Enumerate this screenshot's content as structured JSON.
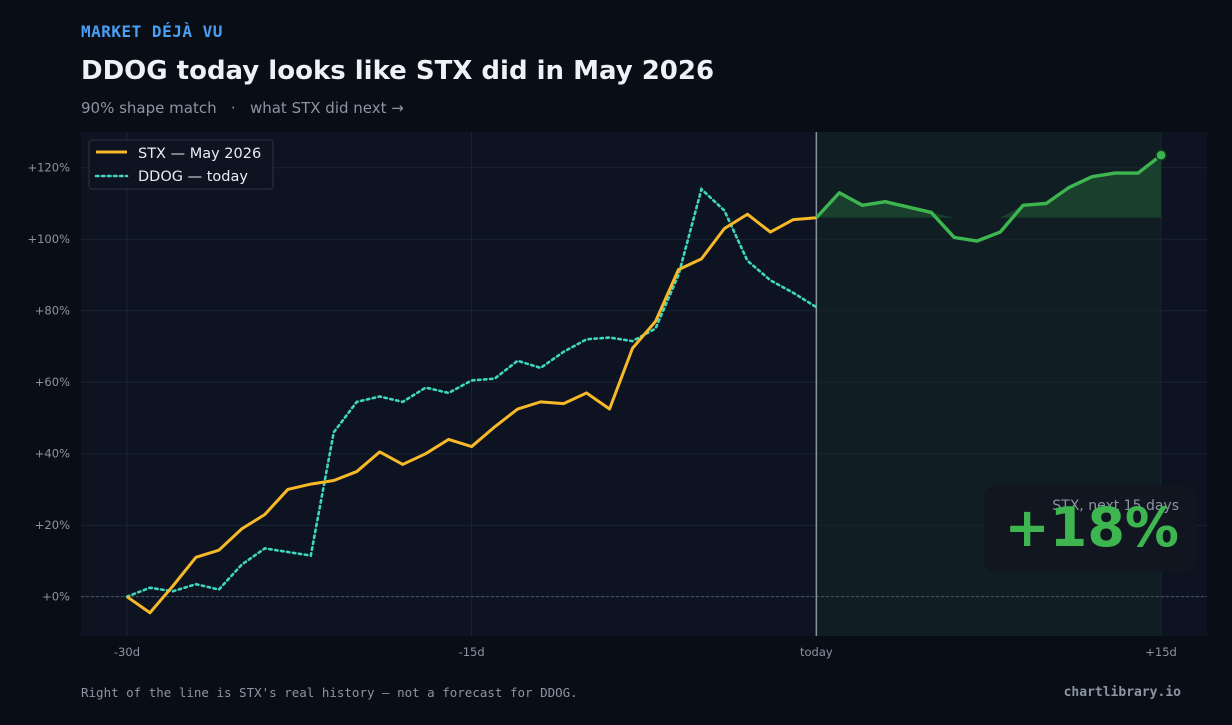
{
  "header": {
    "eyebrow": "MARKET DÉJÀ VU",
    "title": "DDOG today looks like STX did in May 2026",
    "subtitle": "90% shape match   ·   what STX did next →"
  },
  "footer": {
    "note": "Right of the line is STX's real history — not a forecast for DDOG.",
    "brand": "chartlibrary.io"
  },
  "colors": {
    "background": "#090d15",
    "plot_bg": "#0d1320",
    "stx": "#f7b928",
    "ddog": "#3fd6c0",
    "forward": "#3db650",
    "accent": "#4a9ff5"
  },
  "callout": {
    "label": "STX, next 15 days",
    "value": "+18%"
  },
  "chart_data": {
    "type": "line",
    "x_unit": "trading days relative to today",
    "xlim": [
      -32,
      17
    ],
    "ylim": [
      -11,
      130
    ],
    "x_ticks": [
      -30,
      -15,
      0,
      15
    ],
    "x_tick_labels": [
      "-30d",
      "-15d",
      "today",
      "+15d"
    ],
    "y_ticks": [
      0,
      20,
      40,
      60,
      80,
      100,
      120
    ],
    "y_tick_labels": [
      "+0%",
      "+20%",
      "+40%",
      "+60%",
      "+80%",
      "+100%",
      "+120%"
    ],
    "grid": true,
    "legend_position": "top-left",
    "today_x": 0,
    "series": [
      {
        "name": "STX — May 2026",
        "style": "solid",
        "x": [
          -30,
          -29,
          -28,
          -27,
          -26,
          -25,
          -24,
          -23,
          -22,
          -21,
          -20,
          -19,
          -18,
          -17,
          -16,
          -15,
          -14,
          -13,
          -12,
          -11,
          -10,
          -9,
          -8,
          -7,
          -6,
          -5,
          -4,
          -3,
          -2,
          -1,
          0
        ],
        "values": [
          0,
          -4.5,
          3,
          11,
          13,
          19,
          23,
          30,
          31.5,
          32.5,
          35,
          40.5,
          37,
          40,
          44,
          42,
          47.5,
          52.5,
          54.5,
          54,
          57,
          52.5,
          69.5,
          77,
          91.5,
          94.5,
          103,
          107,
          102,
          105.5,
          106
        ]
      },
      {
        "name": "DDOG — today",
        "style": "dotted",
        "x": [
          -30,
          -29,
          -28,
          -27,
          -26,
          -25,
          -24,
          -23,
          -22,
          -21,
          -20,
          -19,
          -18,
          -17,
          -16,
          -15,
          -14,
          -13,
          -12,
          -11,
          -10,
          -9,
          -8,
          -7,
          -6,
          -5,
          -4,
          -3,
          -2,
          -1,
          0
        ],
        "values": [
          0,
          2.5,
          1.5,
          3.5,
          2,
          9,
          13.5,
          12.5,
          11.5,
          46,
          54.5,
          56,
          54.5,
          58.5,
          57,
          60.5,
          61,
          66,
          64,
          68.5,
          72,
          72.5,
          71.5,
          75,
          90,
          114,
          108,
          94,
          88.5,
          85,
          81
        ]
      },
      {
        "name": "",
        "style": "forward",
        "x": [
          0,
          1,
          2,
          3,
          4,
          5,
          6,
          7,
          8,
          9,
          10,
          11,
          12,
          13,
          14,
          15
        ],
        "values": [
          106,
          113,
          109.5,
          110.5,
          109,
          107.5,
          100.5,
          99.5,
          102,
          109.5,
          110,
          114.5,
          117.5,
          118.5,
          118.5,
          123.5
        ]
      }
    ]
  }
}
